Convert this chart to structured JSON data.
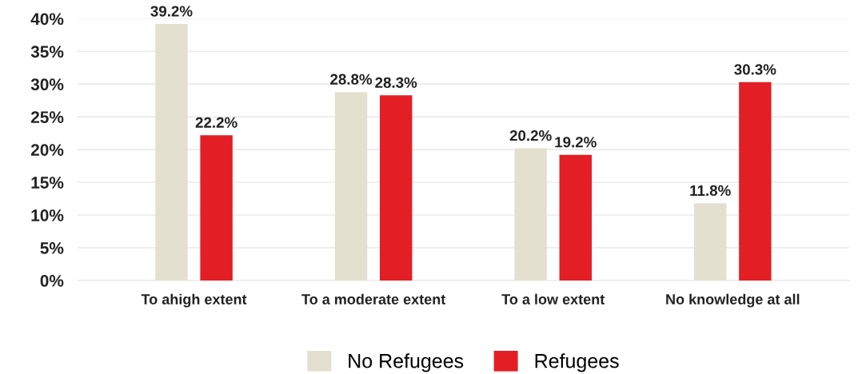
{
  "chart_data": {
    "type": "bar",
    "categories": [
      "To ahigh extent",
      "To a moderate extent",
      "To a low extent",
      "No knowledge at all"
    ],
    "series": [
      {
        "name": "No Refugees",
        "color": "#e4e0d0",
        "values": [
          39.2,
          28.8,
          20.2,
          11.8
        ],
        "value_labels": [
          "39.2%",
          "28.8%",
          "20.2%",
          "11.8%"
        ]
      },
      {
        "name": "Refugees",
        "color": "#e31e25",
        "values": [
          22.2,
          28.3,
          19.2,
          30.3
        ],
        "value_labels": [
          "22.2%",
          "28.3%",
          "19.2%",
          "30.3%"
        ]
      }
    ],
    "ylim": [
      0,
      40
    ],
    "yticks": [
      {
        "value": 0,
        "label": "0%"
      },
      {
        "value": 5,
        "label": "5%"
      },
      {
        "value": 10,
        "label": "10%"
      },
      {
        "value": 15,
        "label": "15%"
      },
      {
        "value": 20,
        "label": "20%"
      },
      {
        "value": 25,
        "label": "25%"
      },
      {
        "value": 30,
        "label": "30%"
      },
      {
        "value": 35,
        "label": "35%"
      },
      {
        "value": 40,
        "label": "40%"
      }
    ],
    "grid": "y",
    "legend": "bottom"
  }
}
